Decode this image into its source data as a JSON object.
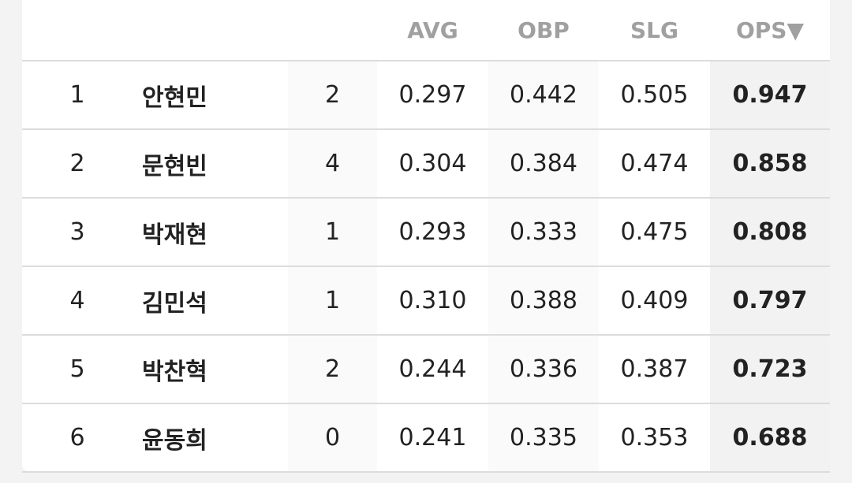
{
  "table": {
    "header": [
      "AVG",
      "OBP",
      "SLG",
      "OPS▼"
    ],
    "rows": [
      [
        "1",
        "안현민",
        "2",
        "0.297",
        "0.442",
        "0.505",
        "0.947"
      ],
      [
        "2",
        "문현빈",
        "4",
        "0.304",
        "0.384",
        "0.474",
        "0.858"
      ],
      [
        "3",
        "박재현",
        "1",
        "0.293",
        "0.333",
        "0.475",
        "0.808"
      ],
      [
        "4",
        "김민석",
        "1",
        "0.310",
        "0.388",
        "0.409",
        "0.797"
      ],
      [
        "5",
        "박찬혁",
        "2",
        "0.244",
        "0.336",
        "0.387",
        "0.723"
      ],
      [
        "6",
        "윤동희",
        "0",
        "0.241",
        "0.335",
        "0.353",
        "0.688"
      ]
    ]
  }
}
